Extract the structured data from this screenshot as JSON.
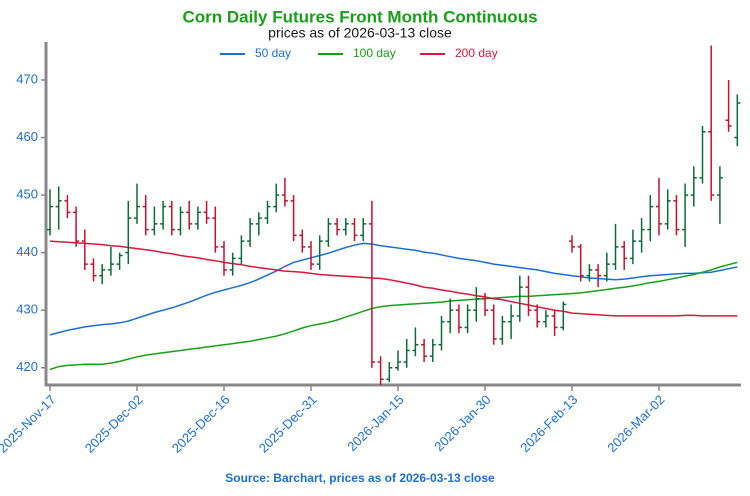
{
  "chart_data": {
    "type": "ohlc",
    "title": "Corn Daily Futures Front Month Continuous",
    "subtitle": "prices as of 2026-03-13 close",
    "source": "Source: Barchart, prices as of 2026-03-13 close",
    "ylim": [
      417,
      476.6
    ],
    "yticks": [
      420,
      430,
      440,
      450,
      460,
      470
    ],
    "up_color": "#0b6b3a",
    "down_color": "#c8102e",
    "categories": [
      "2025-Nov-17",
      null,
      null,
      null,
      null,
      null,
      null,
      null,
      null,
      null,
      "2025-Dec-02",
      null,
      null,
      null,
      null,
      null,
      null,
      null,
      null,
      null,
      "2025-Dec-16",
      null,
      null,
      null,
      null,
      null,
      null,
      null,
      null,
      null,
      "2025-Dec-31",
      null,
      null,
      null,
      null,
      null,
      null,
      null,
      null,
      null,
      "2026-Jan-15",
      null,
      null,
      null,
      null,
      null,
      null,
      null,
      null,
      null,
      "2026-Jan-30",
      null,
      null,
      null,
      null,
      null,
      null,
      null,
      null,
      null,
      "2026-Feb-13",
      null,
      null,
      null,
      null,
      null,
      null,
      null,
      null,
      null,
      "2026-Mar-02",
      null,
      null,
      null,
      null,
      null,
      null,
      null,
      null,
      null
    ],
    "open": [
      444,
      448,
      449,
      447,
      442,
      438,
      436,
      437,
      438,
      440,
      446,
      448,
      444,
      445,
      448,
      444,
      447,
      445,
      447,
      446,
      441,
      437,
      439,
      442,
      445,
      446,
      448,
      450,
      449,
      443,
      441,
      438,
      442,
      445,
      444,
      445,
      443,
      445,
      421,
      418,
      420,
      421,
      423,
      424,
      422,
      424,
      428,
      430,
      427,
      430,
      432,
      430,
      425,
      428,
      429,
      434,
      430,
      428,
      429,
      427,
      442,
      441,
      436,
      437,
      436,
      438,
      441,
      439,
      442,
      444,
      448,
      445,
      449,
      444,
      450,
      453,
      461,
      450,
      463,
      460
    ],
    "high": [
      451,
      451.5,
      450,
      448,
      444,
      439,
      438,
      441,
      440,
      449,
      452,
      450,
      448,
      449,
      449,
      448,
      449,
      448,
      449,
      448,
      442,
      440,
      443,
      446,
      447,
      449,
      452,
      453,
      450,
      444,
      442,
      443,
      446,
      446,
      446,
      446,
      446,
      449,
      422,
      421,
      423,
      425,
      427,
      425,
      425,
      429,
      432,
      431,
      431,
      434,
      433,
      431,
      429,
      431,
      436,
      436,
      431,
      430,
      430,
      431.5,
      443,
      441.5,
      438,
      438,
      440,
      445,
      442,
      444,
      446,
      450,
      453,
      451,
      450,
      452,
      455,
      462,
      476,
      455,
      470,
      467.5
    ],
    "low": [
      443,
      444,
      446,
      441,
      437,
      435,
      434.5,
      436,
      437,
      438,
      445,
      443,
      443,
      444,
      443,
      443,
      444,
      444,
      445,
      440,
      436,
      436,
      438,
      441,
      443,
      445,
      447,
      448,
      442,
      440,
      437,
      437,
      441,
      443,
      443,
      442,
      442,
      420,
      417,
      417.5,
      419.5,
      420,
      422,
      421,
      421,
      423,
      426,
      426,
      426,
      428,
      429,
      424,
      424,
      425,
      428,
      429,
      427,
      427,
      425.5,
      426.5,
      440,
      435,
      435,
      434,
      435,
      437,
      437,
      438,
      440,
      442,
      443,
      444,
      443,
      441,
      448,
      452,
      449,
      445,
      461,
      458.5
    ],
    "close": [
      448,
      449,
      447,
      442,
      438,
      436,
      437,
      438,
      439.5,
      446,
      448,
      444,
      445,
      448,
      444,
      447,
      445,
      447,
      446,
      441,
      437,
      439,
      442,
      445,
      446,
      448,
      450,
      449,
      443,
      441,
      438,
      442,
      445,
      444,
      445,
      443,
      445,
      421,
      418,
      420,
      421,
      423,
      424,
      422,
      424,
      428,
      430,
      427,
      430,
      432,
      430,
      425,
      428,
      429,
      434,
      430,
      428,
      429,
      427,
      431,
      441,
      436,
      437,
      436,
      438,
      441,
      439,
      442,
      444,
      448,
      445,
      449,
      444,
      450,
      453,
      461,
      450,
      453,
      462,
      466
    ],
    "series": [
      {
        "name": "50 day",
        "color": "#1a6fd6",
        "values": [
          425.7,
          426.1,
          426.5,
          426.8,
          427.1,
          427.3,
          427.5,
          427.6,
          427.8,
          428.1,
          428.6,
          429.1,
          429.6,
          430.0,
          430.4,
          430.9,
          431.4,
          432.0,
          432.6,
          433.1,
          433.5,
          433.9,
          434.3,
          434.8,
          435.4,
          436.1,
          436.8,
          437.6,
          438.3,
          438.7,
          439.1,
          439.5,
          439.9,
          440.4,
          440.9,
          441.3,
          441.6,
          441.5,
          441.2,
          441.0,
          440.8,
          440.6,
          440.4,
          440.1,
          439.9,
          439.6,
          439.3,
          439.0,
          438.8,
          438.6,
          438.3,
          438.0,
          437.8,
          437.6,
          437.4,
          437.2,
          437.0,
          436.7,
          436.4,
          436.2,
          436.0,
          435.8,
          435.6,
          435.5,
          435.4,
          435.3,
          435.4,
          435.6,
          435.8,
          436.0,
          436.1,
          436.2,
          436.3,
          436.4,
          436.4,
          436.5,
          436.6,
          436.9,
          437.2,
          437.5
        ]
      },
      {
        "name": "100 day",
        "color": "#17a117",
        "values": [
          419.7,
          420.2,
          420.4,
          420.5,
          420.6,
          420.6,
          420.6,
          420.8,
          421.1,
          421.5,
          421.9,
          422.2,
          422.4,
          422.6,
          422.8,
          423.0,
          423.2,
          423.4,
          423.6,
          423.8,
          424.0,
          424.2,
          424.4,
          424.6,
          424.9,
          425.2,
          425.5,
          425.9,
          426.4,
          426.9,
          427.3,
          427.6,
          427.9,
          428.3,
          428.8,
          429.3,
          429.8,
          430.3,
          430.6,
          430.8,
          430.9,
          431.0,
          431.1,
          431.2,
          431.3,
          431.4,
          431.6,
          431.7,
          431.8,
          431.9,
          432.0,
          432.1,
          432.2,
          432.3,
          432.4,
          432.4,
          432.5,
          432.6,
          432.7,
          432.8,
          432.9,
          433.0,
          433.2,
          433.4,
          433.6,
          433.8,
          434.0,
          434.2,
          434.5,
          434.8,
          435.0,
          435.3,
          435.6,
          435.9,
          436.2,
          436.6,
          437.0,
          437.5,
          437.9,
          438.3
        ]
      },
      {
        "name": "200 day",
        "color": "#d8193c",
        "values": [
          442.0,
          441.9,
          441.8,
          441.7,
          441.6,
          441.5,
          441.4,
          441.2,
          441.1,
          440.9,
          440.7,
          440.5,
          440.3,
          440.0,
          439.8,
          439.5,
          439.3,
          439.1,
          438.8,
          438.6,
          438.3,
          438.1,
          437.9,
          437.6,
          437.4,
          437.2,
          437.0,
          436.8,
          436.7,
          436.6,
          436.4,
          436.2,
          436.1,
          436.0,
          435.9,
          435.8,
          435.7,
          435.6,
          435.5,
          435.3,
          435.0,
          434.7,
          434.4,
          434.0,
          433.8,
          433.5,
          433.3,
          433.0,
          432.8,
          432.5,
          432.3,
          432.0,
          431.8,
          431.5,
          431.2,
          430.9,
          430.6,
          430.3,
          430.0,
          429.8,
          429.5,
          429.4,
          429.3,
          429.2,
          429.1,
          429.0,
          429.0,
          429.0,
          429.0,
          429.0,
          429.0,
          429.0,
          429.0,
          429.1,
          429.1,
          429.0,
          429.0,
          429.0,
          429.0,
          429.0
        ]
      }
    ]
  }
}
